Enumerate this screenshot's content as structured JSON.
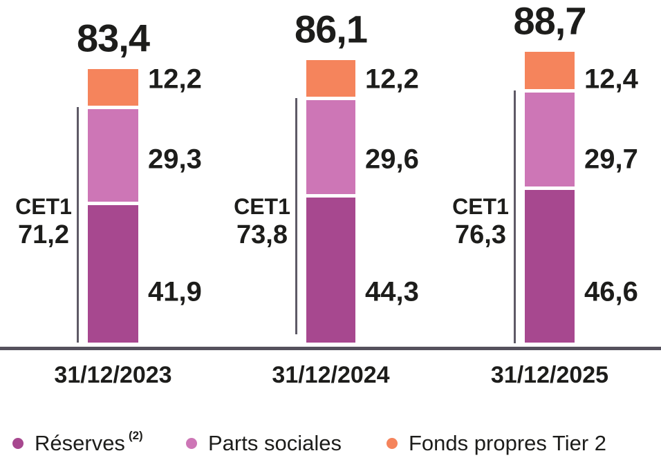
{
  "chart_data": {
    "type": "bar",
    "stacked": true,
    "title": "",
    "categories": [
      "31/12/2023",
      "31/12/2024",
      "31/12/2025"
    ],
    "series": [
      {
        "name": "Réserves",
        "superscript": "(2)",
        "color": "#A7488F",
        "values": [
          41.9,
          44.3,
          46.6
        ],
        "labels": [
          "41,9",
          "44,3",
          "46,6"
        ]
      },
      {
        "name": "Parts sociales",
        "color": "#CD76B6",
        "values": [
          29.3,
          29.6,
          29.7
        ],
        "labels": [
          "29,3",
          "29,6",
          "29,7"
        ]
      },
      {
        "name": "Fonds propres Tier 2",
        "color": "#F5845C",
        "values": [
          12.2,
          12.2,
          12.4
        ],
        "labels": [
          "12,2",
          "12,2",
          "12,4"
        ]
      }
    ],
    "totals": {
      "values": [
        83.4,
        86.1,
        88.7
      ],
      "labels": [
        "83,4",
        "86,1",
        "88,7"
      ]
    },
    "cet1": {
      "label": "CET1",
      "values": [
        71.2,
        73.8,
        76.3
      ],
      "labels": [
        "71,2",
        "73,8",
        "76,3"
      ]
    },
    "legend_position": "bottom",
    "grid": false,
    "ylim": [
      0,
      92
    ]
  },
  "legend": {
    "items": [
      {
        "label": "Réserves",
        "superscript": "(2)",
        "color": "#A7488F"
      },
      {
        "label": "Parts sociales",
        "color": "#CD76B6"
      },
      {
        "label": "Fonds propres Tier 2",
        "color": "#F5845C"
      }
    ]
  },
  "colors": {
    "text": "#1D1D1B",
    "axis_line": "#55515D",
    "bracket_line": "#5E5A66",
    "background": "#FFFFFF"
  }
}
